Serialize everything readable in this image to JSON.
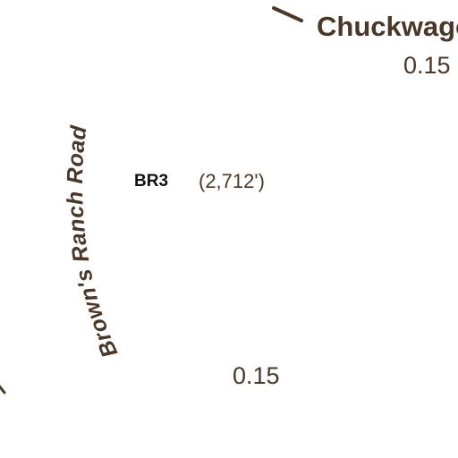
{
  "map": {
    "trail_color": "#4a3728",
    "marker_text_color": "#111111",
    "labels": {
      "trail_top_right": "Chuckwagon",
      "distance_top_right": "0.15",
      "road_name": "Brown's Ranch Road",
      "marker_id": "BR3",
      "elevation": "(2,712')",
      "distance_bottom": "0.15"
    }
  }
}
